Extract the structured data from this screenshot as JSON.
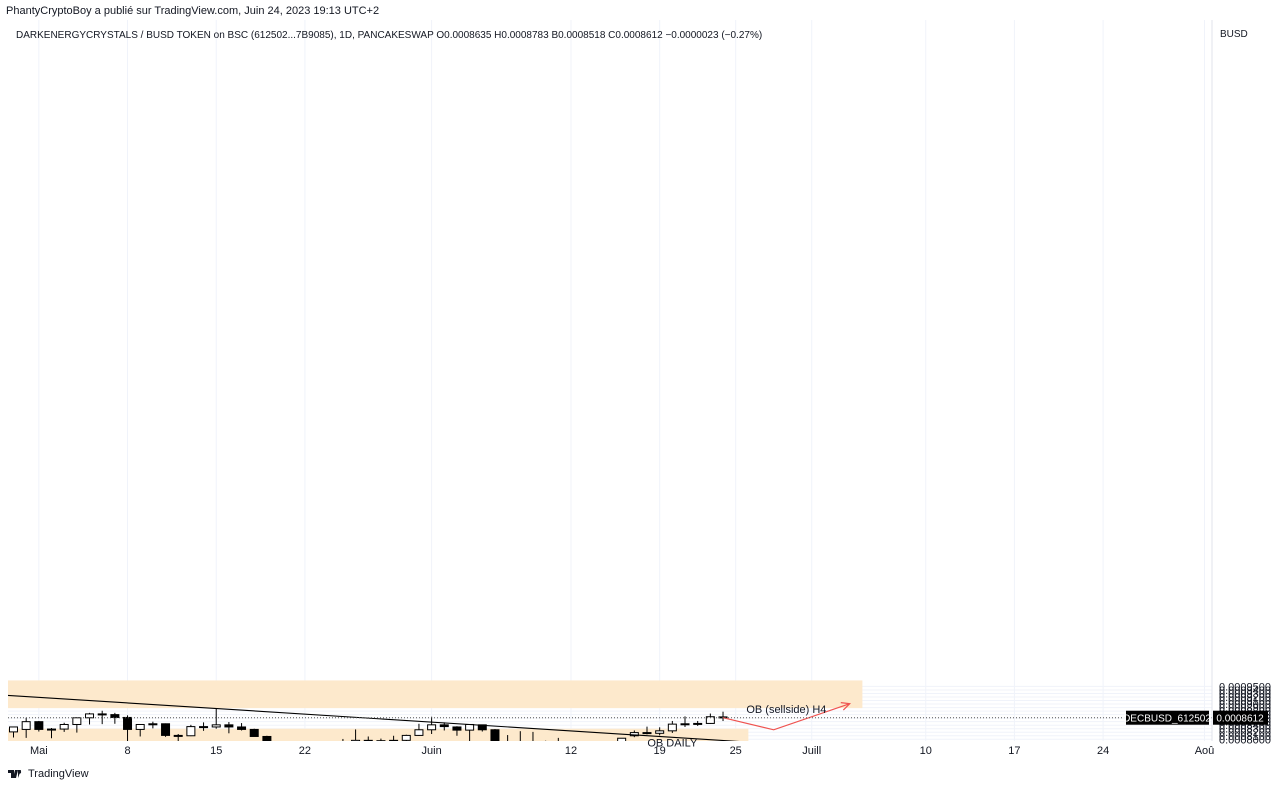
{
  "header": {
    "published_by": "PhantyCryptoBoy a publié sur TradingView.com, Juin 24, 2023 19:13 UTC+2"
  },
  "footer": {
    "brand": "TradingView"
  },
  "colors": {
    "zone_fill": "#fde9cc",
    "up_candle_fill": "#ffffff",
    "down_candle_fill": "#000000",
    "candle_outline": "#000000",
    "trendline": "#000000",
    "projection": "#ef5350",
    "last_price_label_bg": "#000000",
    "grid": "#f0f3fa"
  },
  "chart_data": {
    "type": "candlestick",
    "legend": "DARKENERGYCRYSTALS / BUSD TOKEN on BSC (612502...7B9085), 1D, PANCAKESWAP  O0.0008635  H0.0008783  B0.0008518  C0.0008612  −0.0000023 (−0.27%)",
    "yaxis_unit": "BUSD",
    "ylim": [
      0.000754,
      0.000967
    ],
    "y_ticks": [
      "0.0007600",
      "0.0007700",
      "0.0007800",
      "0.0007900",
      "0.0008000",
      "0.0008100",
      "0.0008200",
      "0.0008300",
      "0.0008400",
      "0.0008500",
      "0.0008600",
      "0.0008700",
      "0.0008800",
      "0.0008900",
      "0.0009000",
      "0.0009100",
      "0.0009200",
      "0.0009300",
      "0.0009400",
      "0.0009500"
    ],
    "x_ticks": [
      {
        "label": "Mai",
        "date": "2023-05-01"
      },
      {
        "label": "8",
        "date": "2023-05-08"
      },
      {
        "label": "15",
        "date": "2023-05-15"
      },
      {
        "label": "22",
        "date": "2023-05-22"
      },
      {
        "label": "Juin",
        "date": "2023-06-01"
      },
      {
        "label": "12",
        "date": "2023-06-12"
      },
      {
        "label": "19",
        "date": "2023-06-19"
      },
      {
        "label": "25",
        "date": "2023-06-25"
      },
      {
        "label": "Juill",
        "date": "2023-07-01"
      },
      {
        "label": "10",
        "date": "2023-07-10"
      },
      {
        "label": "17",
        "date": "2023-07-17"
      },
      {
        "label": "24",
        "date": "2023-07-24"
      },
      {
        "label": "Aoû",
        "date": "2023-08-01"
      }
    ],
    "last_price": {
      "symbol": "DECBUSD_612502",
      "value": "0.0008612",
      "numeric": 0.0008612
    },
    "candles": [
      {
        "date": "2023-04-29",
        "o": 0.000821,
        "h": 0.000835,
        "l": 0.000805,
        "c": 0.000835
      },
      {
        "date": "2023-04-30",
        "o": 0.000828,
        "h": 0.000861,
        "l": 0.000804,
        "c": 0.00085
      },
      {
        "date": "2023-05-01",
        "o": 0.00085,
        "h": 0.000852,
        "l": 0.000822,
        "c": 0.000828
      },
      {
        "date": "2023-05-02",
        "o": 0.000828,
        "h": 0.000832,
        "l": 0.000803,
        "c": 0.000829
      },
      {
        "date": "2023-05-03",
        "o": 0.000829,
        "h": 0.000847,
        "l": 0.000821,
        "c": 0.000842
      },
      {
        "date": "2023-05-04",
        "o": 0.000842,
        "h": 0.000862,
        "l": 0.000819,
        "c": 0.000861
      },
      {
        "date": "2023-05-05",
        "o": 0.000861,
        "h": 0.000875,
        "l": 0.000842,
        "c": 0.000872
      },
      {
        "date": "2023-05-06",
        "o": 0.000872,
        "h": 0.000881,
        "l": 0.000843,
        "c": 0.00087
      },
      {
        "date": "2023-05-07",
        "o": 0.00087,
        "h": 0.000875,
        "l": 0.000844,
        "c": 0.000862
      },
      {
        "date": "2023-05-08",
        "o": 0.000862,
        "h": 0.000868,
        "l": 0.000785,
        "c": 0.000828
      },
      {
        "date": "2023-05-09",
        "o": 0.000828,
        "h": 0.000842,
        "l": 0.000808,
        "c": 0.000842
      },
      {
        "date": "2023-05-10",
        "o": 0.000842,
        "h": 0.00085,
        "l": 0.000831,
        "c": 0.000844
      },
      {
        "date": "2023-05-11",
        "o": 0.000844,
        "h": 0.000845,
        "l": 0.000807,
        "c": 0.000811
      },
      {
        "date": "2023-05-12",
        "o": 0.000811,
        "h": 0.000815,
        "l": 0.000785,
        "c": 0.00081
      },
      {
        "date": "2023-05-13",
        "o": 0.00081,
        "h": 0.000841,
        "l": 0.000809,
        "c": 0.000836
      },
      {
        "date": "2023-05-14",
        "o": 0.000836,
        "h": 0.000848,
        "l": 0.000824,
        "c": 0.000835
      },
      {
        "date": "2023-05-15",
        "o": 0.000835,
        "h": 0.000886,
        "l": 0.00083,
        "c": 0.000841
      },
      {
        "date": "2023-05-16",
        "o": 0.000841,
        "h": 0.000849,
        "l": 0.000817,
        "c": 0.000835
      },
      {
        "date": "2023-05-17",
        "o": 0.000835,
        "h": 0.000846,
        "l": 0.000825,
        "c": 0.000828
      },
      {
        "date": "2023-05-18",
        "o": 0.000828,
        "h": 0.00083,
        "l": 0.00081,
        "c": 0.000808
      },
      {
        "date": "2023-05-19",
        "o": 0.000808,
        "h": 0.00081,
        "l": 0.000767,
        "c": 0.000768
      },
      {
        "date": "2023-05-20",
        "o": 0.000768,
        "h": 0.000778,
        "l": 0.000763,
        "c": 0.000771
      },
      {
        "date": "2023-05-21",
        "o": 0.000771,
        "h": 0.000773,
        "l": 0.000756,
        "c": 0.000757
      },
      {
        "date": "2023-05-22",
        "o": 0.000757,
        "h": 0.00076,
        "l": 0.000756,
        "c": 0.000759
      },
      {
        "date": "2023-05-23",
        "o": 0.000758,
        "h": 0.000762,
        "l": 0.000757,
        "c": 0.000759
      },
      {
        "date": "2023-05-24",
        "o": 0.000759,
        "h": 0.00078,
        "l": 0.000758,
        "c": 0.00077
      },
      {
        "date": "2023-05-25",
        "o": 0.00077,
        "h": 0.000801,
        "l": 0.000769,
        "c": 0.000779
      },
      {
        "date": "2023-05-26",
        "o": 0.000779,
        "h": 0.000828,
        "l": 0.000778,
        "c": 0.000797
      },
      {
        "date": "2023-05-27",
        "o": 0.000797,
        "h": 0.000808,
        "l": 0.000787,
        "c": 0.000796
      },
      {
        "date": "2023-05-28",
        "o": 0.000796,
        "h": 0.000802,
        "l": 0.000788,
        "c": 0.000796
      },
      {
        "date": "2023-05-29",
        "o": 0.000796,
        "h": 0.00081,
        "l": 0.000794,
        "c": 0.000797
      },
      {
        "date": "2023-05-30",
        "o": 0.000797,
        "h": 0.000813,
        "l": 0.000795,
        "c": 0.000811
      },
      {
        "date": "2023-05-31",
        "o": 0.000811,
        "h": 0.000844,
        "l": 0.00081,
        "c": 0.000827
      },
      {
        "date": "2023-06-01",
        "o": 0.000827,
        "h": 0.000864,
        "l": 0.000815,
        "c": 0.000841
      },
      {
        "date": "2023-06-02",
        "o": 0.000841,
        "h": 0.000848,
        "l": 0.000825,
        "c": 0.000836
      },
      {
        "date": "2023-06-03",
        "o": 0.000835,
        "h": 0.000837,
        "l": 0.00081,
        "c": 0.000826
      },
      {
        "date": "2023-06-04",
        "o": 0.000826,
        "h": 0.000843,
        "l": 0.000793,
        "c": 0.000842
      },
      {
        "date": "2023-06-05",
        "o": 0.000841,
        "h": 0.000842,
        "l": 0.000822,
        "c": 0.000827
      },
      {
        "date": "2023-06-06",
        "o": 0.000827,
        "h": 0.000829,
        "l": 0.00076,
        "c": 0.000772
      },
      {
        "date": "2023-06-07",
        "o": 0.000772,
        "h": 0.000812,
        "l": 0.000771,
        "c": 0.000788
      },
      {
        "date": "2023-06-08",
        "o": 0.000788,
        "h": 0.000823,
        "l": 0.000785,
        "c": 0.000786
      },
      {
        "date": "2023-06-09",
        "o": 0.000786,
        "h": 0.000821,
        "l": 0.000783,
        "c": 0.000791
      },
      {
        "date": "2023-06-10",
        "o": 0.000791,
        "h": 0.000796,
        "l": 0.000786,
        "c": 0.000788
      },
      {
        "date": "2023-06-11",
        "o": 0.000788,
        "h": 0.000804,
        "l": 0.000756,
        "c": 0.000758
      },
      {
        "date": "2023-06-12",
        "o": 0.000758,
        "h": 0.000769,
        "l": 0.000756,
        "c": 0.000757
      },
      {
        "date": "2023-06-13",
        "o": 0.000757,
        "h": 0.000768,
        "l": 0.000756,
        "c": 0.00076
      },
      {
        "date": "2023-06-14",
        "o": 0.00076,
        "h": 0.000766,
        "l": 0.000757,
        "c": 0.000762
      },
      {
        "date": "2023-06-15",
        "o": 0.000762,
        "h": 0.000776,
        "l": 0.000756,
        "c": 0.000757
      },
      {
        "date": "2023-06-16",
        "o": 0.00076,
        "h": 0.000802,
        "l": 0.000759,
        "c": 0.000803
      },
      {
        "date": "2023-06-17",
        "o": 0.00081,
        "h": 0.000825,
        "l": 0.000806,
        "c": 0.000819
      },
      {
        "date": "2023-06-18",
        "o": 0.000819,
        "h": 0.000836,
        "l": 0.000814,
        "c": 0.000817
      },
      {
        "date": "2023-06-19",
        "o": 0.000817,
        "h": 0.000834,
        "l": 0.000811,
        "c": 0.000824
      },
      {
        "date": "2023-06-20",
        "o": 0.000824,
        "h": 0.000852,
        "l": 0.000818,
        "c": 0.000843
      },
      {
        "date": "2023-06-21",
        "o": 0.000843,
        "h": 0.000865,
        "l": 0.000835,
        "c": 0.000844
      },
      {
        "date": "2023-06-22",
        "o": 0.000843,
        "h": 0.000852,
        "l": 0.000838,
        "c": 0.000845
      },
      {
        "date": "2023-06-23",
        "o": 0.000845,
        "h": 0.000873,
        "l": 0.000844,
        "c": 0.000864
      },
      {
        "date": "2023-06-24",
        "o": 0.0008635,
        "h": 0.0008783,
        "l": 0.0008518,
        "c": 0.0008612
      }
    ],
    "zones": [
      {
        "name": "OB (sellside) H4",
        "from": "2023-04-28",
        "to": "2023-07-05",
        "y0": 0.0008885,
        "y1": 0.000967
      },
      {
        "name": "OB DAILY",
        "from": "2023-04-28",
        "to": "2023-06-26",
        "y0": 0.0007935,
        "y1": 0.00083
      },
      {
        "name": "",
        "from": "2023-05-23",
        "to": "2023-06-24",
        "y0": 0.000754,
        "y1": 0.00076
      }
    ],
    "trendline": {
      "from": {
        "date": "2023-04-28",
        "value": 0.0009258
      },
      "to": {
        "date": "2023-07-11",
        "value": 0.000758
      }
    },
    "projection": [
      {
        "date": "2023-06-24",
        "value": 0.0008612
      },
      {
        "date": "2023-06-28",
        "value": 0.000827
      },
      {
        "date": "2023-07-04",
        "value": 0.000901
      }
    ],
    "annotations": [
      {
        "text": "OB (sellside) H4",
        "date": "2023-06-29",
        "value": 0.0008855
      },
      {
        "text": "OB DAILY",
        "date": "2023-06-20",
        "value": 0.0007905
      }
    ],
    "grid": true
  }
}
